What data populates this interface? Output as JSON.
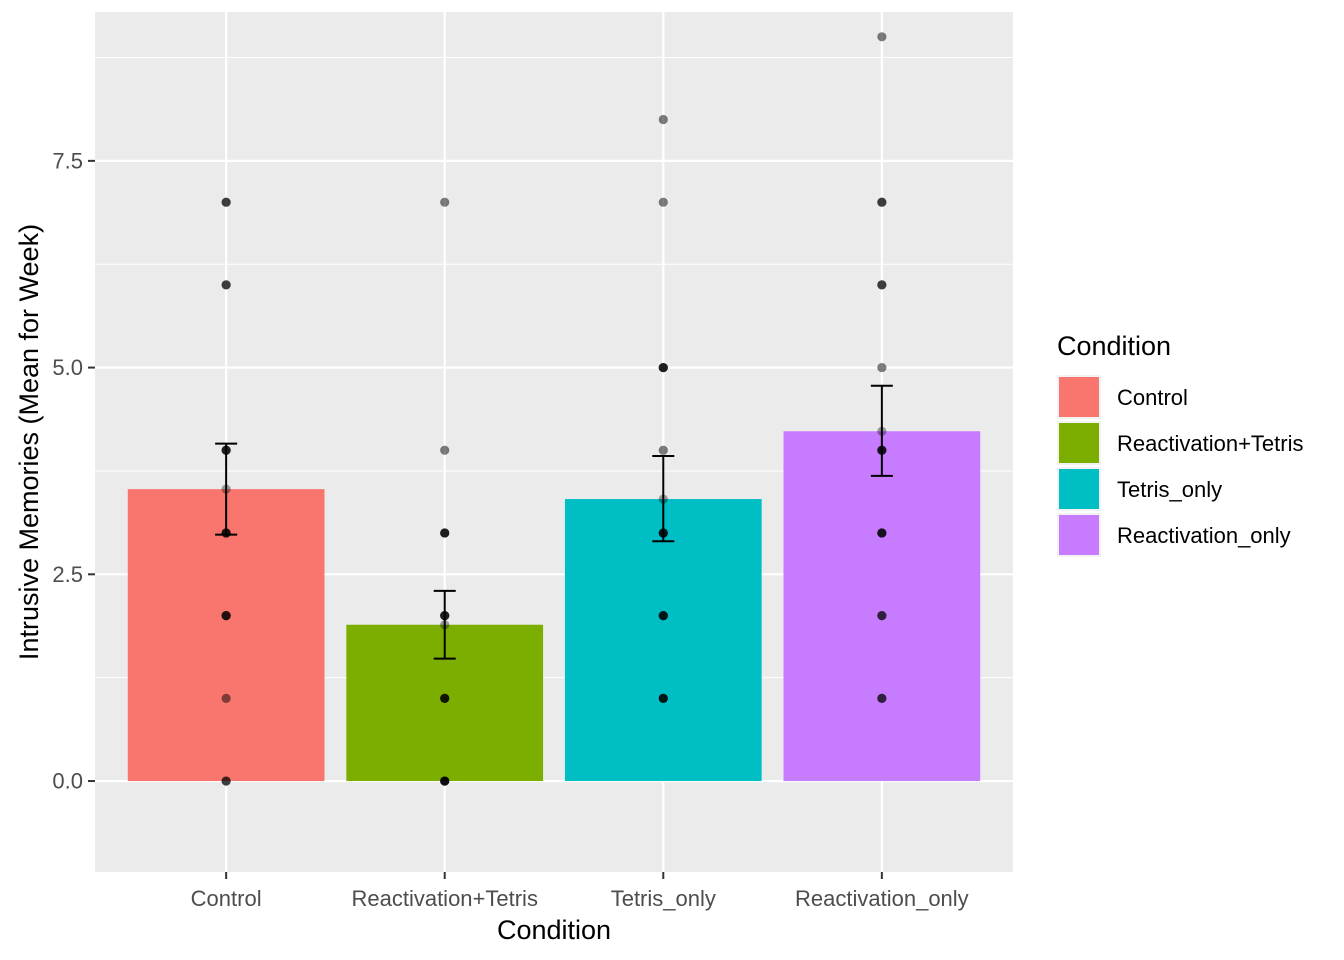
{
  "chart_data": {
    "type": "bar",
    "title": "",
    "xlabel": "Condition",
    "ylabel": "Intrusive Memories (Mean for Week)",
    "categories": [
      "Control",
      "Reactivation+Tetris",
      "Tetris_only",
      "Reactivation_only"
    ],
    "values": [
      3.53,
      1.89,
      3.41,
      4.23
    ],
    "errors": [
      {
        "low": 2.98,
        "high": 4.08
      },
      {
        "low": 1.48,
        "high": 2.3
      },
      {
        "low": 2.9,
        "high": 3.93
      },
      {
        "low": 3.69,
        "high": 4.78
      }
    ],
    "colors": [
      "#F8766D",
      "#7CAE00",
      "#00BFC4",
      "#C77CFF"
    ],
    "points": [
      [
        0,
        0,
        1,
        2,
        2,
        2,
        3,
        3,
        3,
        4,
        4,
        4,
        6,
        6,
        7,
        7
      ],
      [
        0,
        0,
        0,
        0,
        1,
        1,
        1,
        2,
        2,
        2,
        3,
        3,
        3,
        4,
        7
      ],
      [
        1,
        1,
        1,
        2,
        2,
        2,
        3,
        3,
        3,
        4,
        5,
        5,
        5,
        7,
        8
      ],
      [
        1,
        1,
        2,
        2,
        3,
        3,
        3,
        4,
        4,
        4,
        5,
        6,
        6,
        7,
        7,
        9
      ]
    ],
    "ylim": [
      -1.1,
      9.3
    ],
    "yticks": [
      0,
      2.5,
      5,
      7.5
    ],
    "ytick_labels": [
      "0.0",
      "2.5",
      "5.0",
      "7.5"
    ],
    "grid": true,
    "legend": {
      "title": "Condition",
      "position": "right",
      "entries": [
        "Control",
        "Reactivation+Tetris",
        "Tetris_only",
        "Reactivation_only"
      ]
    }
  }
}
